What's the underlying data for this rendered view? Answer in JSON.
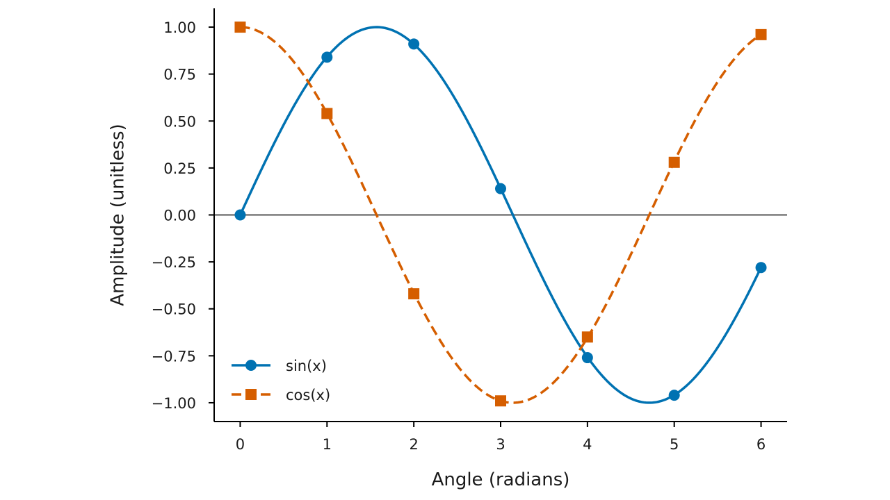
{
  "chart_data": {
    "type": "line",
    "title": "",
    "xlabel": "Angle (radians)",
    "ylabel": "Amplitude (unitless)",
    "xlim": [
      -0.3,
      6.3
    ],
    "ylim": [
      -1.1,
      1.1
    ],
    "x_ticks": [
      0,
      1,
      2,
      3,
      4,
      5,
      6
    ],
    "x_tick_labels": [
      "0",
      "1",
      "2",
      "3",
      "4",
      "5",
      "6"
    ],
    "y_ticks": [
      1.0,
      0.75,
      0.5,
      0.25,
      0.0,
      -0.25,
      -0.5,
      -0.75,
      -1.0
    ],
    "y_tick_labels": [
      "1.00",
      "0.75",
      "0.50",
      "0.25",
      "0.00",
      "−0.25",
      "−0.50",
      "−0.75",
      "−1.00"
    ],
    "grid": false,
    "reference_line": {
      "y": 0,
      "color": "#555555"
    },
    "legend_position": "lower-left",
    "x": [
      0,
      1,
      2,
      3,
      4,
      5,
      6
    ],
    "series": [
      {
        "name": "sin(x)",
        "function": "sin",
        "values": [
          0.0,
          0.84,
          0.91,
          0.14,
          -0.76,
          -0.96,
          -0.28
        ],
        "color": "#0072b2",
        "line_style": "solid",
        "marker": "circle"
      },
      {
        "name": "cos(x)",
        "function": "cos",
        "values": [
          1.0,
          0.54,
          -0.42,
          -0.99,
          -0.65,
          0.28,
          0.96
        ],
        "color": "#d55e00",
        "line_style": "dashed",
        "marker": "square"
      }
    ]
  }
}
